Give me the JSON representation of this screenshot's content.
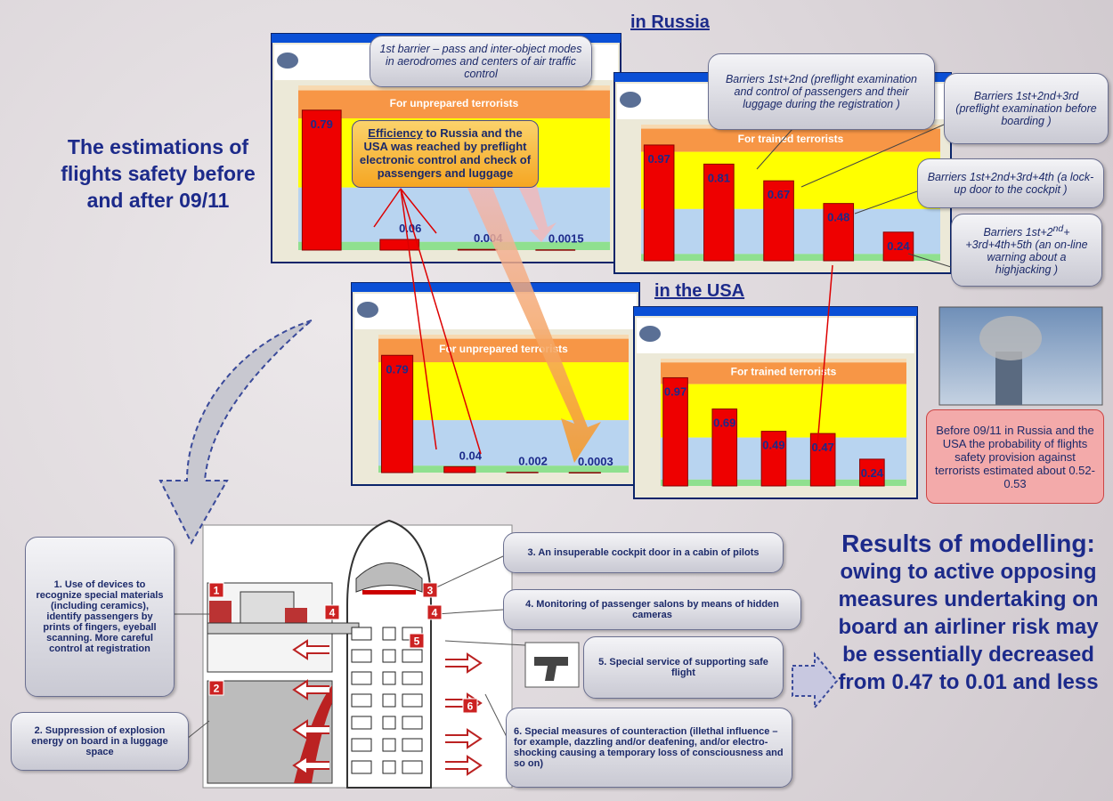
{
  "title": "The estimations of flights safety before and after 09/11",
  "russia_heading": "in Russia",
  "usa_heading": "in the USA",
  "charts": [
    {
      "type": "bar",
      "band_label": "For unprepared terrorists",
      "values": [
        0.79,
        0.06,
        0.004,
        0.0015
      ]
    },
    {
      "type": "bar",
      "band_label": "For trained terrorists",
      "values": [
        0.97,
        0.81,
        0.67,
        0.48,
        0.24
      ]
    },
    {
      "type": "bar",
      "band_label": "For unprepared terrorists",
      "values": [
        0.79,
        0.04,
        0.002,
        0.0003
      ]
    },
    {
      "type": "bar",
      "band_label": "For trained terrorists",
      "values": [
        0.97,
        0.69,
        0.49,
        0.47,
        0.24
      ]
    }
  ],
  "callouts": {
    "barrier_1": "1st barrier – pass and inter-object modes in aerodromes and centers of air traffic control",
    "barrier_2": "Barriers 1st+2nd (preflight examination and control of passengers and their luggage during the registration )",
    "barrier_3": "Barriers 1st+2nd+3rd (preflight examination before boarding )",
    "barrier_4": "Barriers 1st+2nd+3rd+4th (a lock-up door to the cockpit )",
    "barrier_5": [
      "Barriers 1st+2",
      "nd",
      "+ +3rd+4th+5th (an on-line warning about a highjacking )"
    ],
    "efficiency": [
      "Efficiency",
      " to Russia and the USA was reached by preflight electronic control and check of passengers and luggage"
    ]
  },
  "before_note": "Before 09/11 in Russia and the USA the probability of flights safety provision against terrorists estimated about 0.52-0.53",
  "measures": [
    "1. Use of devices to recognize special materials (including ceramics), identify passengers by prints of fingers, eyeball scanning. More careful control at registration",
    "2. Suppression of explosion energy  on board in a luggage space",
    "3. An insuperable  cockpit door in a cabin of pilots",
    "4. Monitoring of passenger salons by means of hidden cameras",
    "5. Special service of supporting safe flight",
    "6. Special measures of counteraction (illethal influence – for example, dazzling and/or deafening, and/or electro-shocking causing a temporary loss of consciousness and so on)"
  ],
  "diagram_markers": [
    "1",
    "2",
    "3",
    "4",
    "4",
    "5",
    "6"
  ],
  "results_heading": "Results of modelling:",
  "results_text": "owing to active opposing measures undertaking on board an airliner risk may be essentially decreased from 0.47 to 0.01 and less"
}
